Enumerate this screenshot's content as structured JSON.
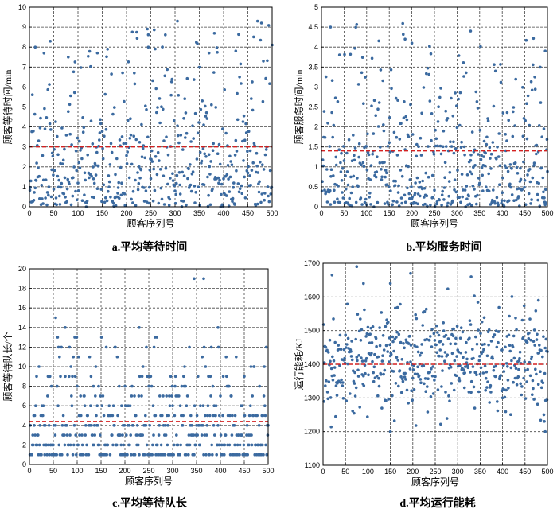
{
  "chart_data": [
    {
      "id": "a",
      "type": "scatter",
      "caption": "a.平均等待时间",
      "xlabel": "顾客序列号",
      "ylabel": "顾客等待时间/min",
      "xlim": [
        0,
        500
      ],
      "ylim": [
        0,
        10
      ],
      "xticks": [
        0,
        50,
        100,
        150,
        200,
        250,
        300,
        350,
        400,
        450,
        500
      ],
      "yticks": [
        0,
        1,
        2,
        3,
        4,
        5,
        6,
        7,
        8,
        9,
        10
      ],
      "grid": true,
      "mean_line": 3.0,
      "highlight_points": [
        [
          12,
          8.0
        ],
        [
          80,
          7.5
        ],
        [
          140,
          7.7
        ],
        [
          245,
          8.0
        ],
        [
          305,
          9.3
        ],
        [
          370,
          7.7
        ],
        [
          425,
          7.8
        ],
        [
          470,
          9.3
        ]
      ],
      "series": [
        {
          "color": "#3b6aa0",
          "seed": 11,
          "count": 500,
          "dist": "exp",
          "mean": 3.0,
          "max": 9.3
        }
      ]
    },
    {
      "id": "b",
      "type": "scatter",
      "caption": "b.平均服务时间",
      "xlabel": "顾客序列号",
      "ylabel": "顾客服务时间/min",
      "xlim": [
        0,
        500
      ],
      "ylim": [
        0,
        5
      ],
      "xticks": [
        0,
        50,
        100,
        150,
        200,
        250,
        300,
        350,
        400,
        450,
        500
      ],
      "yticks": [
        0,
        0.5,
        1,
        1.5,
        2,
        2.5,
        3,
        3.5,
        4,
        4.5,
        5
      ],
      "grid": true,
      "mean_line": 1.4,
      "highlight_points": [
        [
          20,
          4.5
        ],
        [
          185,
          4.2
        ],
        [
          200,
          4.1
        ],
        [
          330,
          4.4
        ],
        [
          495,
          3.9
        ]
      ],
      "series": [
        {
          "color": "#3b6aa0",
          "seed": 23,
          "count": 500,
          "dist": "exp",
          "mean": 1.4,
          "max": 4.6
        }
      ]
    },
    {
      "id": "c",
      "type": "scatter",
      "caption": "c.平均等待队长",
      "xlabel": "顾客序列号",
      "ylabel": "顾客等待队长/个",
      "xlim": [
        0,
        500
      ],
      "ylim": [
        0,
        20
      ],
      "xticks": [
        0,
        50,
        100,
        150,
        200,
        250,
        300,
        350,
        400,
        450,
        500
      ],
      "yticks": [
        0,
        2,
        4,
        6,
        8,
        10,
        12,
        14,
        16,
        18,
        20
      ],
      "grid": true,
      "mean_line": 4.4,
      "highlight_points": [
        [
          55,
          15
        ],
        [
          75,
          14
        ],
        [
          345,
          19
        ],
        [
          365,
          19
        ],
        [
          230,
          14
        ],
        [
          395,
          14
        ]
      ],
      "series": [
        {
          "color": "#3b6aa0",
          "seed": 37,
          "count": 500,
          "dist": "int",
          "mean": 4.4,
          "max": 13
        }
      ]
    },
    {
      "id": "d",
      "type": "scatter",
      "caption": "d.平均运行能耗",
      "xlabel": "顾客序列号",
      "ylabel": "运行能耗/KJ",
      "xlim": [
        0,
        500
      ],
      "ylim": [
        1100,
        1700
      ],
      "xticks": [
        0,
        50,
        100,
        150,
        200,
        250,
        300,
        350,
        400,
        450,
        500
      ],
      "yticks": [
        1100,
        1200,
        1300,
        1400,
        1500,
        1600,
        1700
      ],
      "grid": true,
      "mean_line": 1400,
      "highlight_points": [
        [
          20,
          1665
        ],
        [
          75,
          1690
        ],
        [
          90,
          1640
        ],
        [
          150,
          1640
        ],
        [
          195,
          1670
        ],
        [
          330,
          1660
        ],
        [
          480,
          1590
        ],
        [
          150,
          1200
        ],
        [
          495,
          1200
        ]
      ],
      "series": [
        {
          "color": "#3b6aa0",
          "seed": 53,
          "count": 500,
          "dist": "normal",
          "mean": 1405,
          "sd": 80,
          "min": 1205,
          "max": 1690
        }
      ]
    }
  ]
}
